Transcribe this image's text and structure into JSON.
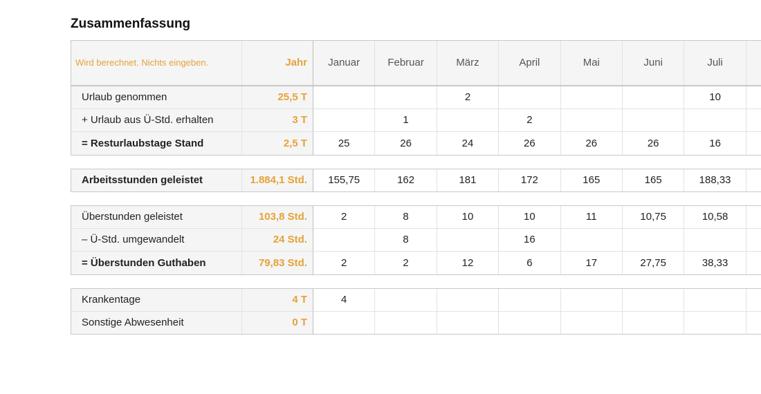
{
  "title": "Zusammenfassung",
  "table": {
    "header": {
      "note": "Wird berechnet. Nichts eingeben.",
      "year": "Jahr",
      "months": [
        "Januar",
        "Februar",
        "März",
        "April",
        "Mai",
        "Juni",
        "Juli"
      ]
    },
    "groups": [
      {
        "rows": [
          {
            "label": "Urlaub genommen",
            "year": "25,5 T",
            "bold": false,
            "values": [
              null,
              null,
              "2",
              null,
              null,
              null,
              "10"
            ]
          },
          {
            "label": "+ Urlaub aus Ü-Std. erhalten",
            "year": "3 T",
            "bold": false,
            "values": [
              null,
              "1",
              null,
              "2",
              null,
              null,
              null
            ]
          },
          {
            "label": "= Resturlaubstage Stand",
            "year": "2,5 T",
            "bold": true,
            "values": [
              "25",
              "26",
              "24",
              "26",
              "26",
              "26",
              "16"
            ]
          }
        ]
      },
      {
        "rows": [
          {
            "label": "Arbeitsstunden geleistet",
            "year": "1.884,1 Std.",
            "bold": true,
            "values": [
              "155,75",
              "162",
              "181",
              "172",
              "165",
              "165",
              "188,33"
            ]
          }
        ]
      },
      {
        "rows": [
          {
            "label": "Überstunden geleistet",
            "year": "103,8 Std.",
            "bold": false,
            "values": [
              "2",
              "8",
              "10",
              "10",
              "11",
              "10,75",
              "10,58"
            ]
          },
          {
            "label": "– Ü-Std. umgewandelt",
            "year": "24 Std.",
            "bold": false,
            "values": [
              null,
              "8",
              null,
              "16",
              null,
              null,
              null
            ]
          },
          {
            "label": "= Überstunden Guthaben",
            "year": "79,83 Std.",
            "bold": true,
            "values": [
              "2",
              "2",
              "12",
              "6",
              "17",
              "27,75",
              "38,33"
            ]
          }
        ]
      },
      {
        "rows": [
          {
            "label": "Krankentage",
            "year": "4 T",
            "bold": false,
            "values": [
              "4",
              null,
              null,
              null,
              null,
              null,
              null
            ]
          },
          {
            "label": "Sonstige Abwesenheit",
            "year": "0 T",
            "bold": false,
            "values": [
              null,
              null,
              null,
              null,
              null,
              null,
              null
            ]
          }
        ]
      }
    ]
  }
}
